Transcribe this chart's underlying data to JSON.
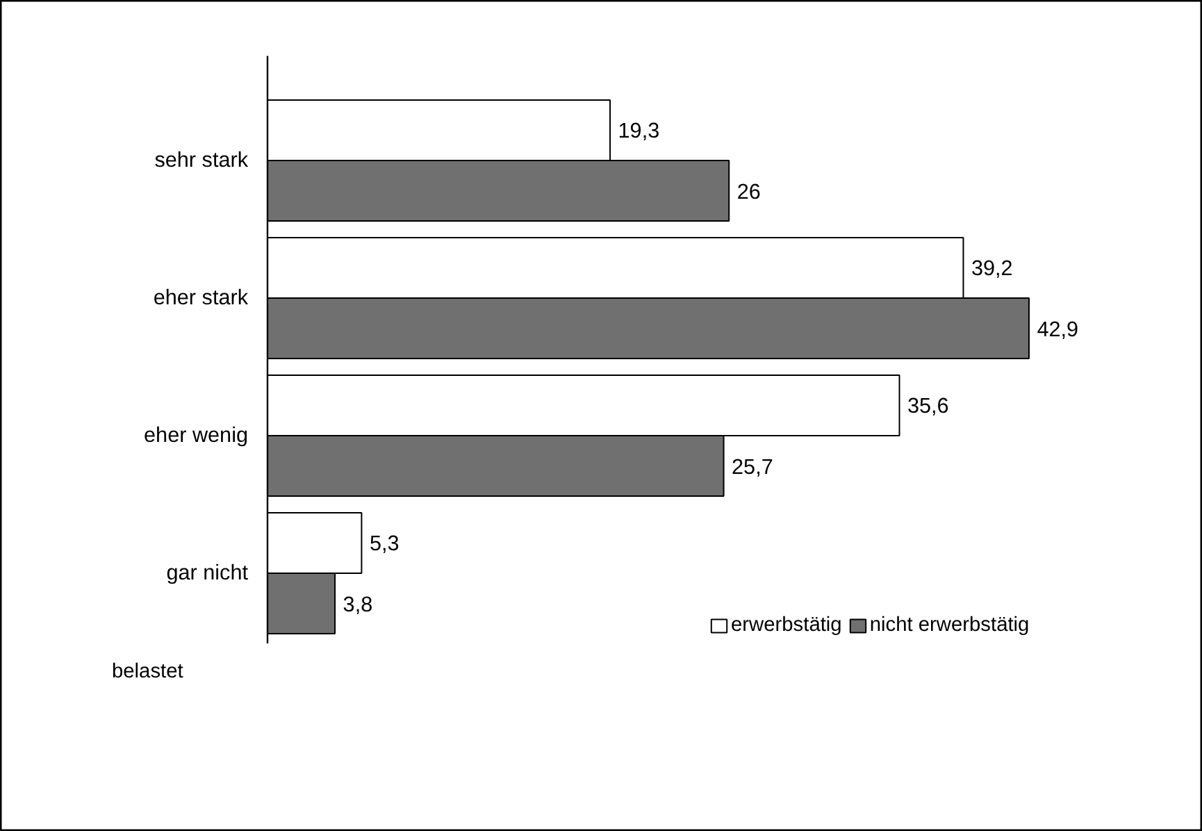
{
  "chart_data": {
    "type": "bar",
    "orientation": "horizontal",
    "categories": [
      "sehr stark",
      "eher stark",
      "eher wenig",
      "gar nicht"
    ],
    "series": [
      {
        "name": "erwerbstätig",
        "color": "#ffffff",
        "values": [
          19.3,
          39.2,
          35.6,
          5.3
        ],
        "value_labels": [
          "19,3",
          "39,2",
          "35,6",
          "5,3"
        ]
      },
      {
        "name": "nicht erwerbstätig",
        "color": "#707070",
        "values": [
          26,
          42.9,
          25.7,
          3.8
        ],
        "value_labels": [
          "26",
          "42,9",
          "25,7",
          "3,8"
        ]
      }
    ],
    "ylabel": "belastet",
    "legend": "bottom right",
    "grid": false
  }
}
